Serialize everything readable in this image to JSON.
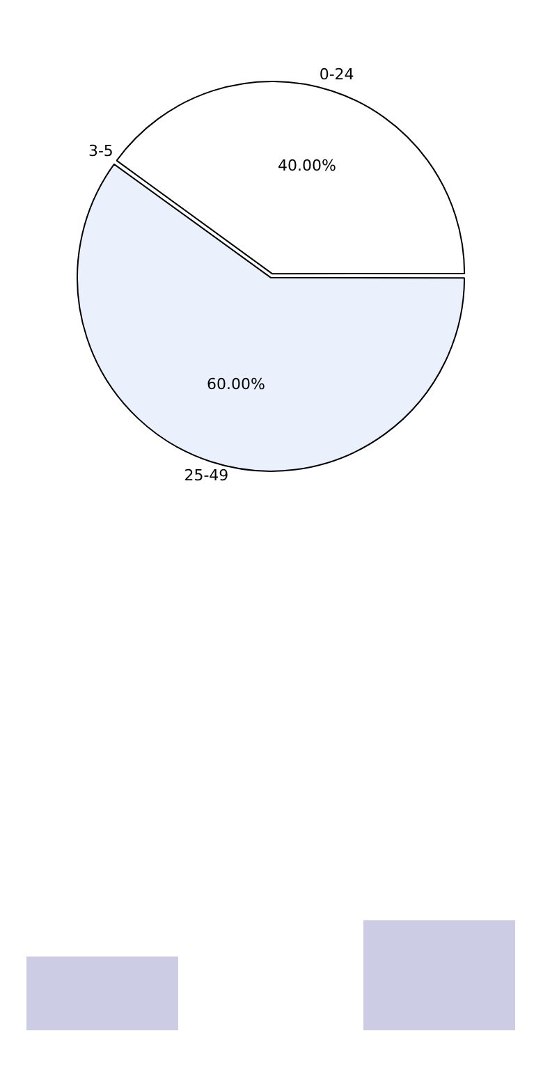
{
  "chart_data": {
    "type": "pie",
    "categories": [
      "0-24",
      "25-49",
      "3-5"
    ],
    "values": [
      40,
      60,
      0
    ],
    "colors": [
      "#ffffff",
      "#eaf0fc",
      "#eaf0fc"
    ],
    "value_labels": [
      "40.00%",
      "60.00%",
      null
    ]
  }
}
